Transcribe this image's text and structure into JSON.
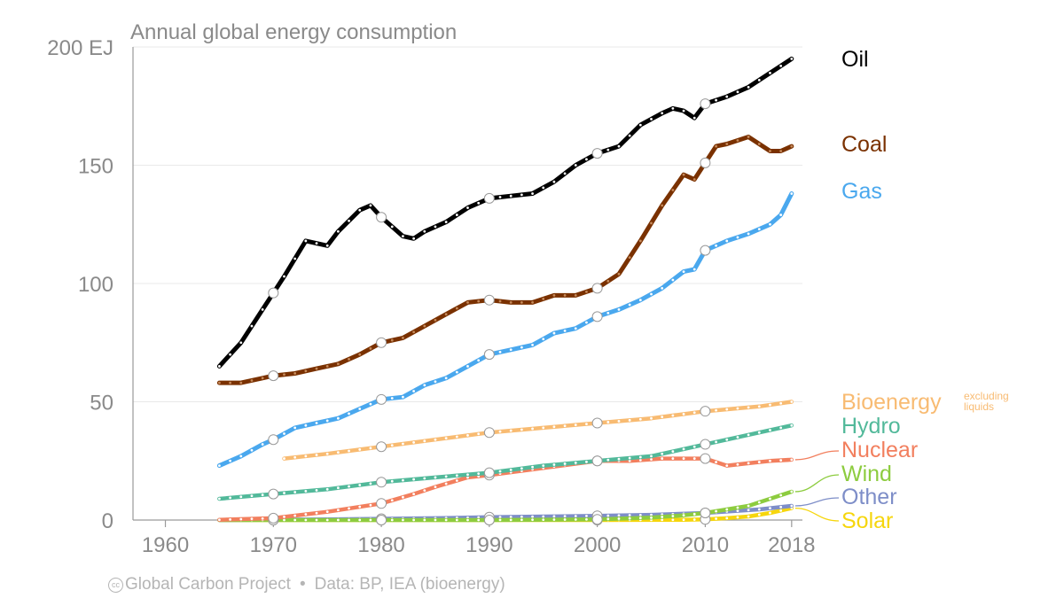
{
  "chart_data": {
    "type": "line",
    "title": "Annual global energy consumption",
    "ylabel": "",
    "xlabel": "",
    "y_unit_label": "EJ",
    "xlim": [
      1957,
      2019
    ],
    "ylim": [
      0,
      200
    ],
    "x_ticks": [
      "1960",
      "1970",
      "1980",
      "1990",
      "2000",
      "2010",
      "2018"
    ],
    "y_ticks": [
      "0",
      "50",
      "100",
      "150",
      "200 EJ"
    ],
    "grid": true,
    "legend_placement": "right",
    "series": [
      {
        "name": "Oil",
        "color": "#000000",
        "dot_color": "#ffffff",
        "x": [
          1965,
          1967,
          1969,
          1970,
          1971,
          1973,
          1975,
          1976,
          1978,
          1979,
          1980,
          1982,
          1983,
          1984,
          1986,
          1988,
          1990,
          1992,
          1994,
          1996,
          1998,
          2000,
          2002,
          2004,
          2006,
          2007,
          2008,
          2009,
          2010,
          2012,
          2014,
          2016,
          2018
        ],
        "y": [
          65,
          75,
          89,
          96,
          103,
          118,
          116,
          122,
          131,
          133,
          128,
          120,
          119,
          122,
          126,
          132,
          136,
          137,
          138,
          143,
          150,
          155,
          158,
          167,
          172,
          174,
          173,
          170,
          176,
          179,
          183,
          189,
          195
        ]
      },
      {
        "name": "Coal",
        "color": "#7a3100",
        "dot_color": "#c58a5c",
        "x": [
          1965,
          1967,
          1969,
          1970,
          1972,
          1974,
          1976,
          1978,
          1980,
          1982,
          1984,
          1986,
          1988,
          1990,
          1992,
          1994,
          1996,
          1998,
          2000,
          2002,
          2004,
          2006,
          2008,
          2009,
          2010,
          2011,
          2012,
          2014,
          2016,
          2017,
          2018
        ],
        "y": [
          58,
          58,
          60,
          61,
          62,
          64,
          66,
          70,
          75,
          77,
          82,
          87,
          92,
          93,
          92,
          92,
          95,
          95,
          98,
          104,
          118,
          133,
          146,
          144,
          151,
          158,
          159,
          162,
          156,
          156,
          158
        ]
      },
      {
        "name": "Gas",
        "color": "#4aa8ee",
        "dot_color": "#ffffff",
        "x": [
          1965,
          1967,
          1969,
          1970,
          1972,
          1974,
          1976,
          1978,
          1980,
          1982,
          1984,
          1986,
          1988,
          1990,
          1992,
          1994,
          1996,
          1998,
          2000,
          2002,
          2004,
          2006,
          2008,
          2009,
          2010,
          2012,
          2014,
          2016,
          2017,
          2018
        ],
        "y": [
          23,
          27,
          32,
          34,
          39,
          41,
          43,
          47,
          51,
          52,
          57,
          60,
          65,
          70,
          72,
          74,
          79,
          81,
          86,
          89,
          93,
          98,
          105,
          106,
          114,
          118,
          121,
          125,
          129,
          138
        ]
      },
      {
        "name": "Bioenergy",
        "legend_note": "excluding liquids",
        "color": "#f8bb72",
        "dot_color": "#ffffff",
        "x": [
          1971,
          1975,
          1980,
          1985,
          1990,
          1995,
          2000,
          2005,
          2010,
          2015,
          2018
        ],
        "y": [
          26,
          28,
          31,
          34,
          37,
          39,
          41,
          43,
          46,
          48,
          50
        ]
      },
      {
        "name": "Hydro",
        "color": "#52b99a",
        "dot_color": "#ffffff",
        "x": [
          1965,
          1970,
          1975,
          1980,
          1985,
          1990,
          1995,
          2000,
          2005,
          2010,
          2015,
          2018
        ],
        "y": [
          9,
          11,
          13,
          16,
          18,
          20,
          23,
          25,
          27,
          32,
          37,
          40
        ]
      },
      {
        "name": "Nuclear",
        "color": "#f27f5e",
        "dot_color": "#ffffff",
        "x": [
          1965,
          1970,
          1975,
          1980,
          1983,
          1985,
          1988,
          1990,
          1995,
          2000,
          2003,
          2006,
          2010,
          2012,
          2014,
          2016,
          2018
        ],
        "y": [
          0.1,
          0.8,
          3.5,
          7,
          11,
          14,
          18,
          19,
          22,
          25,
          25,
          26,
          26,
          23,
          24,
          25,
          25.5
        ]
      },
      {
        "name": "Wind",
        "color": "#8dcc3f",
        "dot_color": "#ffffff",
        "x": [
          1965,
          1990,
          2000,
          2005,
          2008,
          2010,
          2012,
          2014,
          2016,
          2018
        ],
        "y": [
          0,
          0,
          0.3,
          1,
          2,
          3,
          4.5,
          6,
          9,
          12
        ]
      },
      {
        "name": "Other",
        "color": "#7e8ec8",
        "dot_color": "#ffffff",
        "x": [
          1965,
          1975,
          1985,
          1990,
          1995,
          2000,
          2005,
          2010,
          2015,
          2018
        ],
        "y": [
          0,
          0.3,
          0.8,
          1.2,
          1.5,
          1.8,
          2.2,
          3,
          4.5,
          6
        ]
      },
      {
        "name": "Solar",
        "color": "#f6d60d",
        "dot_color": "#ffffff",
        "x": [
          1965,
          2000,
          2008,
          2010,
          2012,
          2014,
          2016,
          2018
        ],
        "y": [
          0,
          0,
          0.1,
          0.3,
          0.8,
          1.5,
          3,
          5
        ]
      }
    ]
  },
  "footer": {
    "cc_icon": "cc-by-icon",
    "cc_text": "cc",
    "source": "Global Carbon Project",
    "separator": "•",
    "data_credit": "Data: BP, IEA (bioenergy)"
  }
}
